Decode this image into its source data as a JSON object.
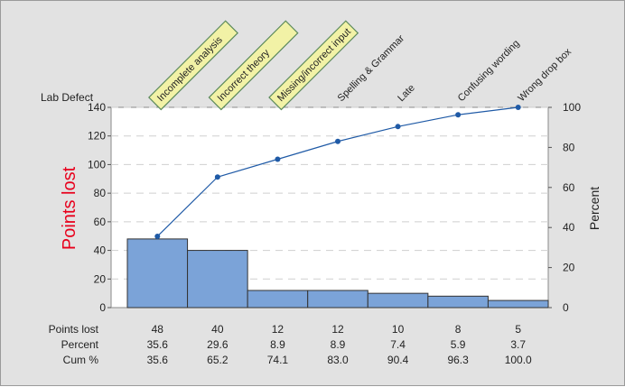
{
  "chart_data": {
    "type": "bar",
    "subtype": "pareto",
    "categories": [
      "Incomplete analysis",
      "Incorrect theory",
      "Missing/incorrect input",
      "Spelling & Grammar",
      "Late",
      "Confusing wording",
      "Wrong drop box"
    ],
    "highlighted_categories": [
      0,
      1,
      2
    ],
    "values": [
      48,
      40,
      12,
      12,
      10,
      8,
      5
    ],
    "percent": [
      35.6,
      29.6,
      8.9,
      8.9,
      7.4,
      5.9,
      3.7
    ],
    "cum_percent": [
      35.6,
      65.2,
      74.1,
      83.0,
      90.4,
      96.3,
      100.0
    ],
    "percent_text": [
      "35.6",
      "29.6",
      "8.9",
      "8.9",
      "7.4",
      "5.9",
      "3.7"
    ],
    "cum_percent_text": [
      "35.6",
      "65.2",
      "74.1",
      "83.0",
      "90.4",
      "96.3",
      "100.0"
    ],
    "category_axis_title": "Lab Defect",
    "ylabel": "Points lost",
    "y2label": "Percent",
    "ylim": [
      0,
      140
    ],
    "yticks": [
      0,
      20,
      40,
      60,
      80,
      100,
      120,
      140
    ],
    "y2lim": [
      0,
      100
    ],
    "y2ticks": [
      0,
      20,
      40,
      60,
      80,
      100
    ],
    "row_labels": [
      "Points lost",
      "Percent",
      "Cum %"
    ],
    "grid": "horizontal dashed",
    "colors": {
      "bar_fill": "#7ba3d8",
      "bar_stroke": "#333333",
      "line": "#1f5aa6",
      "ylabel": "#e8001c",
      "label_box_fill": "#f2f2a6",
      "label_box_stroke": "#5c8a5c",
      "background": "#e2e2e2",
      "plot_background": "#ffffff",
      "grid": "#cfcfcf"
    }
  }
}
